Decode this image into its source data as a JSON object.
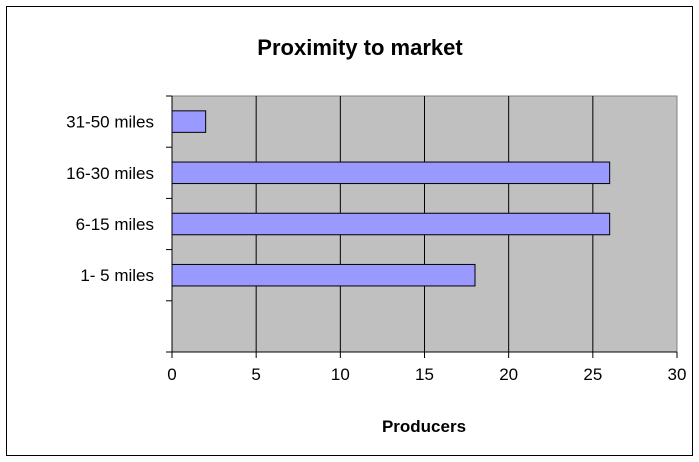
{
  "chart_data": {
    "type": "bar",
    "orientation": "horizontal",
    "title": "Proximity to market",
    "xlabel": "Producers",
    "ylabel": "",
    "categories": [
      "31-50 miles",
      "16-30 miles",
      "6-15 miles",
      "1- 5 miles"
    ],
    "values": [
      2,
      26,
      26,
      18
    ],
    "xlim": [
      0,
      30
    ],
    "x_ticks": [
      "0",
      "5",
      "10",
      "15",
      "20",
      "25",
      "30"
    ],
    "grid": "vertical",
    "legend": "none",
    "colors": {
      "bar_fill": "#9999ff",
      "plot_bg": "#c0c0c0",
      "border": "#000000"
    }
  }
}
